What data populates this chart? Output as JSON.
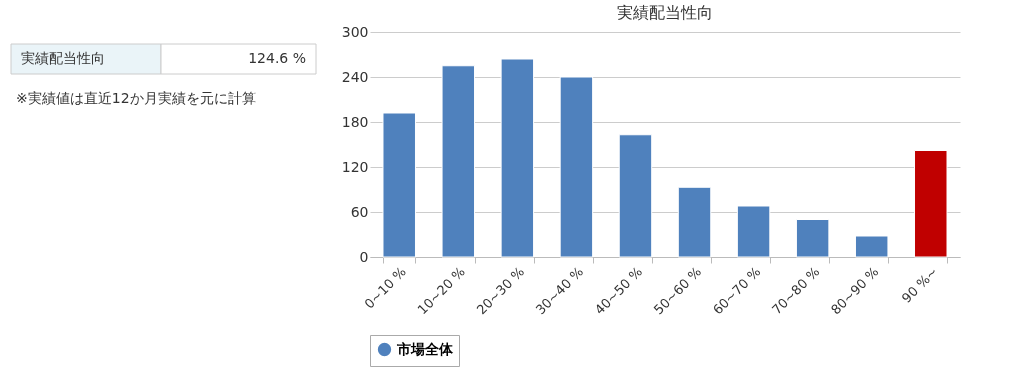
{
  "chart_data": {
    "type": "bar",
    "title": "実績配当性向",
    "categories": [
      "0~10 %",
      "10~20 %",
      "20~30 %",
      "30~40 %",
      "40~50 %",
      "50~60 %",
      "60~70 %",
      "70~80 %",
      "80~90 %",
      "90 %~"
    ],
    "series": [
      {
        "name": "市場全体",
        "color": "#4f81bd",
        "values": [
          192,
          255,
          264,
          240,
          163,
          93,
          68,
          50,
          28,
          null
        ]
      },
      {
        "color": "#c00000",
        "values": [
          null,
          null,
          null,
          null,
          null,
          null,
          null,
          null,
          null,
          142
        ]
      }
    ],
    "ylim": [
      0,
      300
    ],
    "yticks": [
      0,
      60,
      120,
      180,
      240,
      300
    ],
    "grid": "y",
    "legend": "bottom",
    "annotations": [
      "実績配当性向",
      "124.6 %",
      "※実績値は直近12か月実績を元に計算"
    ]
  }
}
